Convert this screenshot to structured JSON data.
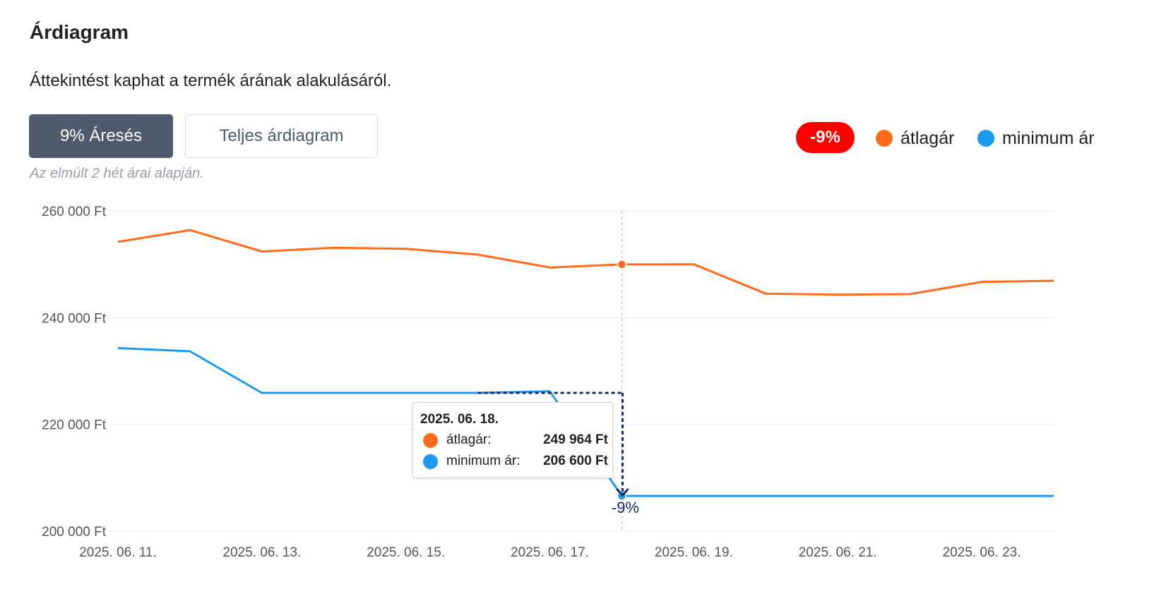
{
  "header": {
    "title": "Árdiagram",
    "subtitle": "Áttekintést kaphat a termék árának alakulásáról."
  },
  "buttons": {
    "drop_label": "9% Áresés",
    "full_label": "Teljes árdiagram"
  },
  "note": "Az elmúlt 2 hét árai alapján.",
  "legend": {
    "badge": "-9%",
    "avg_label": "átlagár",
    "min_label": "minimum ár"
  },
  "colors": {
    "avg": "#ff6b1a",
    "min": "#1a9bf0",
    "badge": "#ff0000",
    "annotation": "#1b2a6b"
  },
  "tooltip": {
    "date": "2025. 06. 18.",
    "avg_label": "átlagár:",
    "avg_value": "249 964 Ft",
    "min_label": "minimum ár:",
    "min_value": "206 600 Ft"
  },
  "chart_data": {
    "type": "line",
    "x": [
      "2025-06-11",
      "2025-06-12",
      "2025-06-13",
      "2025-06-14",
      "2025-06-15",
      "2025-06-16",
      "2025-06-17",
      "2025-06-18",
      "2025-06-19",
      "2025-06-20",
      "2025-06-21",
      "2025-06-22",
      "2025-06-23",
      "2025-06-24"
    ],
    "series": [
      {
        "name": "átlagár",
        "values": [
          254200,
          256400,
          252400,
          253100,
          252900,
          251800,
          249400,
          249964,
          250000,
          244500,
          244300,
          244400,
          246700,
          246900
        ]
      },
      {
        "name": "minimum ár",
        "values": [
          234300,
          233700,
          225900,
          225900,
          225900,
          225900,
          226200,
          206600,
          206600,
          206600,
          206600,
          206600,
          206600,
          206600
        ]
      }
    ],
    "ylim": [
      200000,
      260000
    ],
    "yticks": [
      200000,
      220000,
      240000,
      260000
    ],
    "ytick_labels": [
      "200 000 Ft",
      "220 000 Ft",
      "240 000 Ft",
      "260 000 Ft"
    ],
    "xtick_labels": [
      "2025. 06. 11.",
      "2025. 06. 13.",
      "2025. 06. 15.",
      "2025. 06. 17.",
      "2025. 06. 19.",
      "2025. 06. 21.",
      "2025. 06. 23."
    ],
    "highlight_date": "2025-06-18",
    "annotation": {
      "text": "-9%",
      "from_value": 225900,
      "to_value": 206600
    },
    "grid": true,
    "legend_position": "top-right"
  }
}
